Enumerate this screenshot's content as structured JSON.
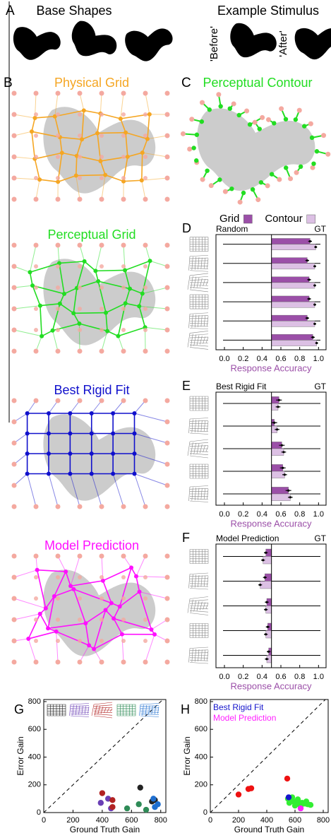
{
  "panel_a": {
    "label": "A",
    "base_shapes": "Base Shapes",
    "example_stimulus": "Example Stimulus",
    "before": "'Before'",
    "after": "'After'"
  },
  "panel_b": {
    "label": "B",
    "titles": [
      "Physical Grid",
      "Perceptual Grid",
      "Best Rigid Fit",
      "Model Prediction"
    ],
    "colors": [
      "#f5a623",
      "#22dd22",
      "#1010cc",
      "#ff10ff"
    ]
  },
  "panel_c": {
    "label": "C",
    "title": "Perceptual Contour"
  },
  "chart_data": [
    {
      "type": "barh",
      "label": "D",
      "left_label": "Random",
      "right_label": "GT",
      "xlabel": "Response Accuracy",
      "xlim": [
        -0.09,
        1.08
      ],
      "xticks": [
        {
          "value": 0,
          "label": "0.0"
        },
        0.2,
        0.4,
        0.6,
        0.8,
        {
          "value": 1,
          "label": "1.0"
        }
      ],
      "reference_line": 0.5,
      "legend": "top",
      "series": [
        {
          "name": "Grid",
          "color": "#9b4fa8",
          "values": [
            0.91,
            0.88,
            0.9,
            0.9,
            0.88,
            0.94
          ],
          "errors": [
            0.02,
            0.02,
            0.02,
            0.02,
            0.02,
            0.02
          ]
        },
        {
          "name": "Contour",
          "color": "#dcc0e4",
          "values": [
            0.97,
            0.96,
            0.96,
            0.96,
            0.96,
            0.98
          ],
          "errors": [
            0.015,
            0.015,
            0.015,
            0.015,
            0.015,
            0.015
          ]
        }
      ]
    },
    {
      "type": "barh",
      "label": "E",
      "left_label": "Best Rigid Fit",
      "right_label": "GT",
      "xlabel": "Response Accuracy",
      "xlim": [
        -0.09,
        1.08
      ],
      "xticks": [
        {
          "value": 0,
          "label": "0.0"
        },
        0.2,
        0.4,
        0.6,
        0.8,
        {
          "value": 1,
          "label": "1.0"
        }
      ],
      "reference_line": 0.5,
      "series": [
        {
          "color": "#9b4fa8",
          "values": [
            0.58,
            0.53,
            0.61,
            0.62,
            0.68
          ],
          "errors": [
            0.03,
            0.03,
            0.03,
            0.03,
            0.03
          ]
        },
        {
          "color": "#dcc0e4",
          "values": [
            0.57,
            0.56,
            0.63,
            0.64,
            0.7
          ],
          "errors": [
            0.025,
            0.025,
            0.025,
            0.025,
            0.025
          ]
        }
      ]
    },
    {
      "type": "barh",
      "label": "F",
      "left_label": "Model Prediction",
      "right_label": "GT",
      "xlabel": "Response Accuracy",
      "xlim": [
        -0.09,
        1.08
      ],
      "xticks": [
        {
          "value": 0,
          "label": "0.0"
        },
        0.2,
        0.4,
        0.6,
        0.8,
        {
          "value": 1,
          "label": "1.0"
        }
      ],
      "reference_line": 0.5,
      "series": [
        {
          "color": "#9b4fa8",
          "values": [
            0.44,
            0.43,
            0.45,
            0.46,
            0.47
          ],
          "errors": [
            0.02,
            0.02,
            0.02,
            0.02,
            0.02
          ]
        },
        {
          "color": "#dcc0e4",
          "values": [
            0.41,
            0.38,
            0.44,
            0.44,
            0.45
          ],
          "errors": [
            0.02,
            0.02,
            0.02,
            0.02,
            0.02
          ]
        }
      ]
    },
    {
      "type": "scatter",
      "label": "G",
      "xlabel": "Ground Truth Gain",
      "ylabel": "Error Gain",
      "xlim": [
        0,
        835
      ],
      "ylim": [
        0,
        815
      ],
      "xticks": [
        0,
        200,
        400,
        600,
        800
      ],
      "yticks": [
        0,
        200,
        400,
        600,
        800
      ],
      "diagonal": true,
      "series": [
        {
          "color": "#222222",
          "x": [
            660,
            760,
            740
          ],
          "y": [
            180,
            90,
            80
          ]
        },
        {
          "color": "#6a3fb5",
          "x": [
            390,
            440,
            460
          ],
          "y": [
            70,
            100,
            30
          ]
        },
        {
          "color": "#b22222",
          "x": [
            400,
            470,
            470
          ],
          "y": [
            140,
            90,
            40
          ]
        },
        {
          "color": "#2e8b57",
          "x": [
            570,
            650,
            700
          ],
          "y": [
            30,
            60,
            20
          ]
        },
        {
          "color": "#1f6fd0",
          "x": [
            750,
            780,
            760
          ],
          "y": [
            100,
            60,
            40
          ]
        }
      ]
    },
    {
      "type": "scatter",
      "label": "H",
      "xlabel": "Ground Truth Gain",
      "ylabel": "Error Gain",
      "xlim": [
        0,
        835
      ],
      "ylim": [
        0,
        815
      ],
      "xticks": [
        0,
        200,
        400,
        600,
        800
      ],
      "yticks": [
        0,
        200,
        400,
        600,
        800
      ],
      "diagonal": true,
      "legend": "top-left",
      "series": [
        {
          "color": "#ee1111",
          "x": [
            200,
            270,
            290,
            545
          ],
          "y": [
            130,
            170,
            175,
            245
          ]
        },
        {
          "color": "#33ee33",
          "x": [
            550,
            570,
            590,
            610,
            630,
            650,
            670,
            690,
            710,
            560,
            600,
            640,
            680,
            620,
            580
          ],
          "y": [
            100,
            90,
            80,
            70,
            60,
            70,
            65,
            60,
            55,
            70,
            50,
            45,
            80,
            95,
            110
          ]
        },
        {
          "name": "Best Rigid Fit",
          "color": "#1515cc",
          "x": [
            555
          ],
          "y": [
            110
          ]
        },
        {
          "name": "Model Prediction",
          "color": "#ff22ff",
          "x": [
            640
          ],
          "y": [
            30
          ]
        }
      ]
    }
  ]
}
